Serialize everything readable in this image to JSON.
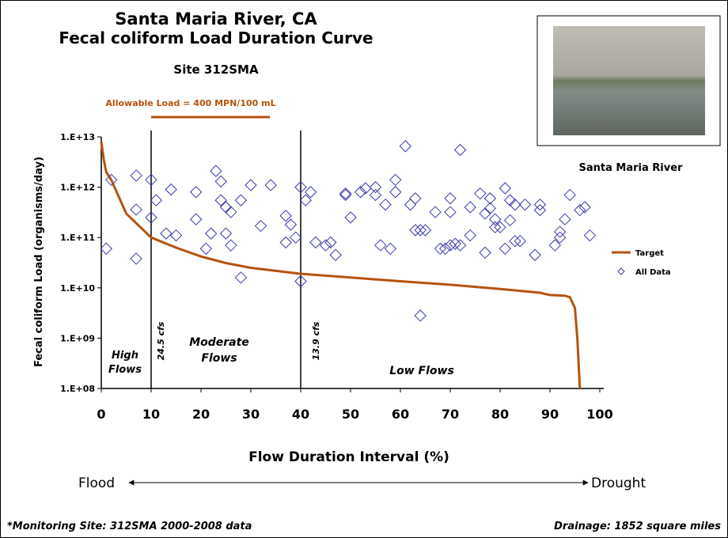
{
  "chart_data": {
    "type": "line",
    "title": "Santa Maria River, CA",
    "subtitle": "Fecal coliform Load Duration Curve",
    "site": "Site 312SMA",
    "allowable_load": "Allowable Load = 400 MPN/100 mL",
    "photo_caption": "Santa Maria River",
    "x_label": "Flow Duration Interval (%)",
    "y_label": "Fecal coliform Load (organisms/day)",
    "flood_label": "Flood",
    "drought_label": "Drought",
    "footer_left": "*Monitoring Site: 312SMA 2000-2008 data",
    "footer_right": "Drainage: 1852 square miles",
    "annotations": [
      "High",
      "Flows",
      "Moderate",
      "Flows",
      "Low Flows",
      "24.5 cfs",
      "13.9 cfs"
    ],
    "vlines": [
      10,
      40
    ],
    "xlim": [
      0,
      100
    ],
    "xticks": [
      0,
      10,
      20,
      30,
      40,
      50,
      60,
      70,
      80,
      90,
      100
    ],
    "ylim": [
      100000000,
      10000000000000
    ],
    "yscale": "log",
    "yticks": [
      {
        "value": 10000000000000,
        "label": "1.E+13"
      },
      {
        "value": 1000000000000,
        "label": "1.E+12"
      },
      {
        "value": 100000000000,
        "label": "1.E+11"
      },
      {
        "value": 10000000000,
        "label": "1.E+10"
      },
      {
        "value": 1000000000,
        "label": "1.E+09"
      },
      {
        "value": 100000000,
        "label": "1.E+08"
      }
    ],
    "legend": "right",
    "series": [
      {
        "name": "Target",
        "type": "line",
        "color": "#b5530f",
        "x": [
          0,
          0.5,
          1,
          2,
          5,
          10,
          15,
          20,
          25,
          30,
          40,
          50,
          60,
          70,
          80,
          88,
          90,
          93,
          94,
          95,
          95.5,
          96
        ],
        "values": [
          8000000000000,
          3500000000000,
          2000000000000,
          1400000000000,
          300000000000,
          100000000000,
          63000000000,
          42000000000,
          31000000000,
          25000000000,
          19000000000,
          16000000000,
          13500000000,
          11500000000,
          9500000000,
          8000000000,
          7200000000,
          7000000000,
          6500000000,
          4000000000,
          1000000000,
          100000000
        ]
      },
      {
        "name": "All Data",
        "type": "scatter",
        "color": "#3a3aaa",
        "x": [
          1,
          2,
          7,
          7,
          7,
          10,
          10,
          11,
          13,
          14,
          15,
          19,
          19,
          21,
          22,
          23,
          24,
          24,
          25,
          25,
          26,
          26,
          28,
          28,
          30,
          32,
          34,
          37,
          37,
          38,
          39,
          40,
          40,
          41,
          42,
          43,
          45,
          46,
          47,
          49,
          49,
          50,
          52,
          53,
          55,
          55,
          56,
          57,
          58,
          59,
          59,
          61,
          62,
          63,
          63,
          64,
          64,
          65,
          67,
          68,
          69,
          70,
          70,
          70,
          71,
          72,
          72,
          74,
          74,
          76,
          77,
          77,
          78,
          78,
          79,
          79,
          80,
          81,
          81,
          82,
          82,
          83,
          83,
          84,
          85,
          87,
          88,
          88,
          91,
          92,
          92,
          93,
          94,
          96,
          97,
          98
        ],
        "values": [
          60000000000,
          1400000000000,
          1700000000000,
          360000000000,
          38000000000,
          1400000000000,
          250000000000,
          550000000000,
          120000000000,
          900000000000,
          110000000000,
          800000000000,
          230000000000,
          60000000000,
          120000000000,
          2100000000000,
          1300000000000,
          550000000000,
          400000000000,
          120000000000,
          320000000000,
          70000000000,
          550000000000,
          16000000000,
          1100000000000,
          170000000000,
          1100000000000,
          80000000000,
          270000000000,
          180000000000,
          100000000000,
          1000000000000,
          13500000000,
          550000000000,
          800000000000,
          80000000000,
          70000000000,
          80000000000,
          45000000000,
          750000000000,
          700000000000,
          250000000000,
          800000000000,
          950000000000,
          1000000000000,
          700000000000,
          70000000000,
          450000000000,
          60000000000,
          1400000000000,
          800000000000,
          6500000000000,
          450000000000,
          600000000000,
          140000000000,
          2800000000,
          140000000000,
          140000000000,
          320000000000,
          60000000000,
          60000000000,
          70000000000,
          320000000000,
          600000000000,
          75000000000,
          5500000000000,
          70000000000,
          110000000000,
          400000000000,
          750000000000,
          300000000000,
          50000000000,
          600000000000,
          380000000000,
          160000000000,
          230000000000,
          160000000000,
          60000000000,
          950000000000,
          550000000000,
          220000000000,
          450000000000,
          85000000000,
          85000000000,
          450000000000,
          45000000000,
          450000000000,
          350000000000,
          70000000000,
          130000000000,
          100000000000,
          230000000000,
          700000000000,
          350000000000,
          400000000000,
          110000000000
        ]
      }
    ]
  }
}
